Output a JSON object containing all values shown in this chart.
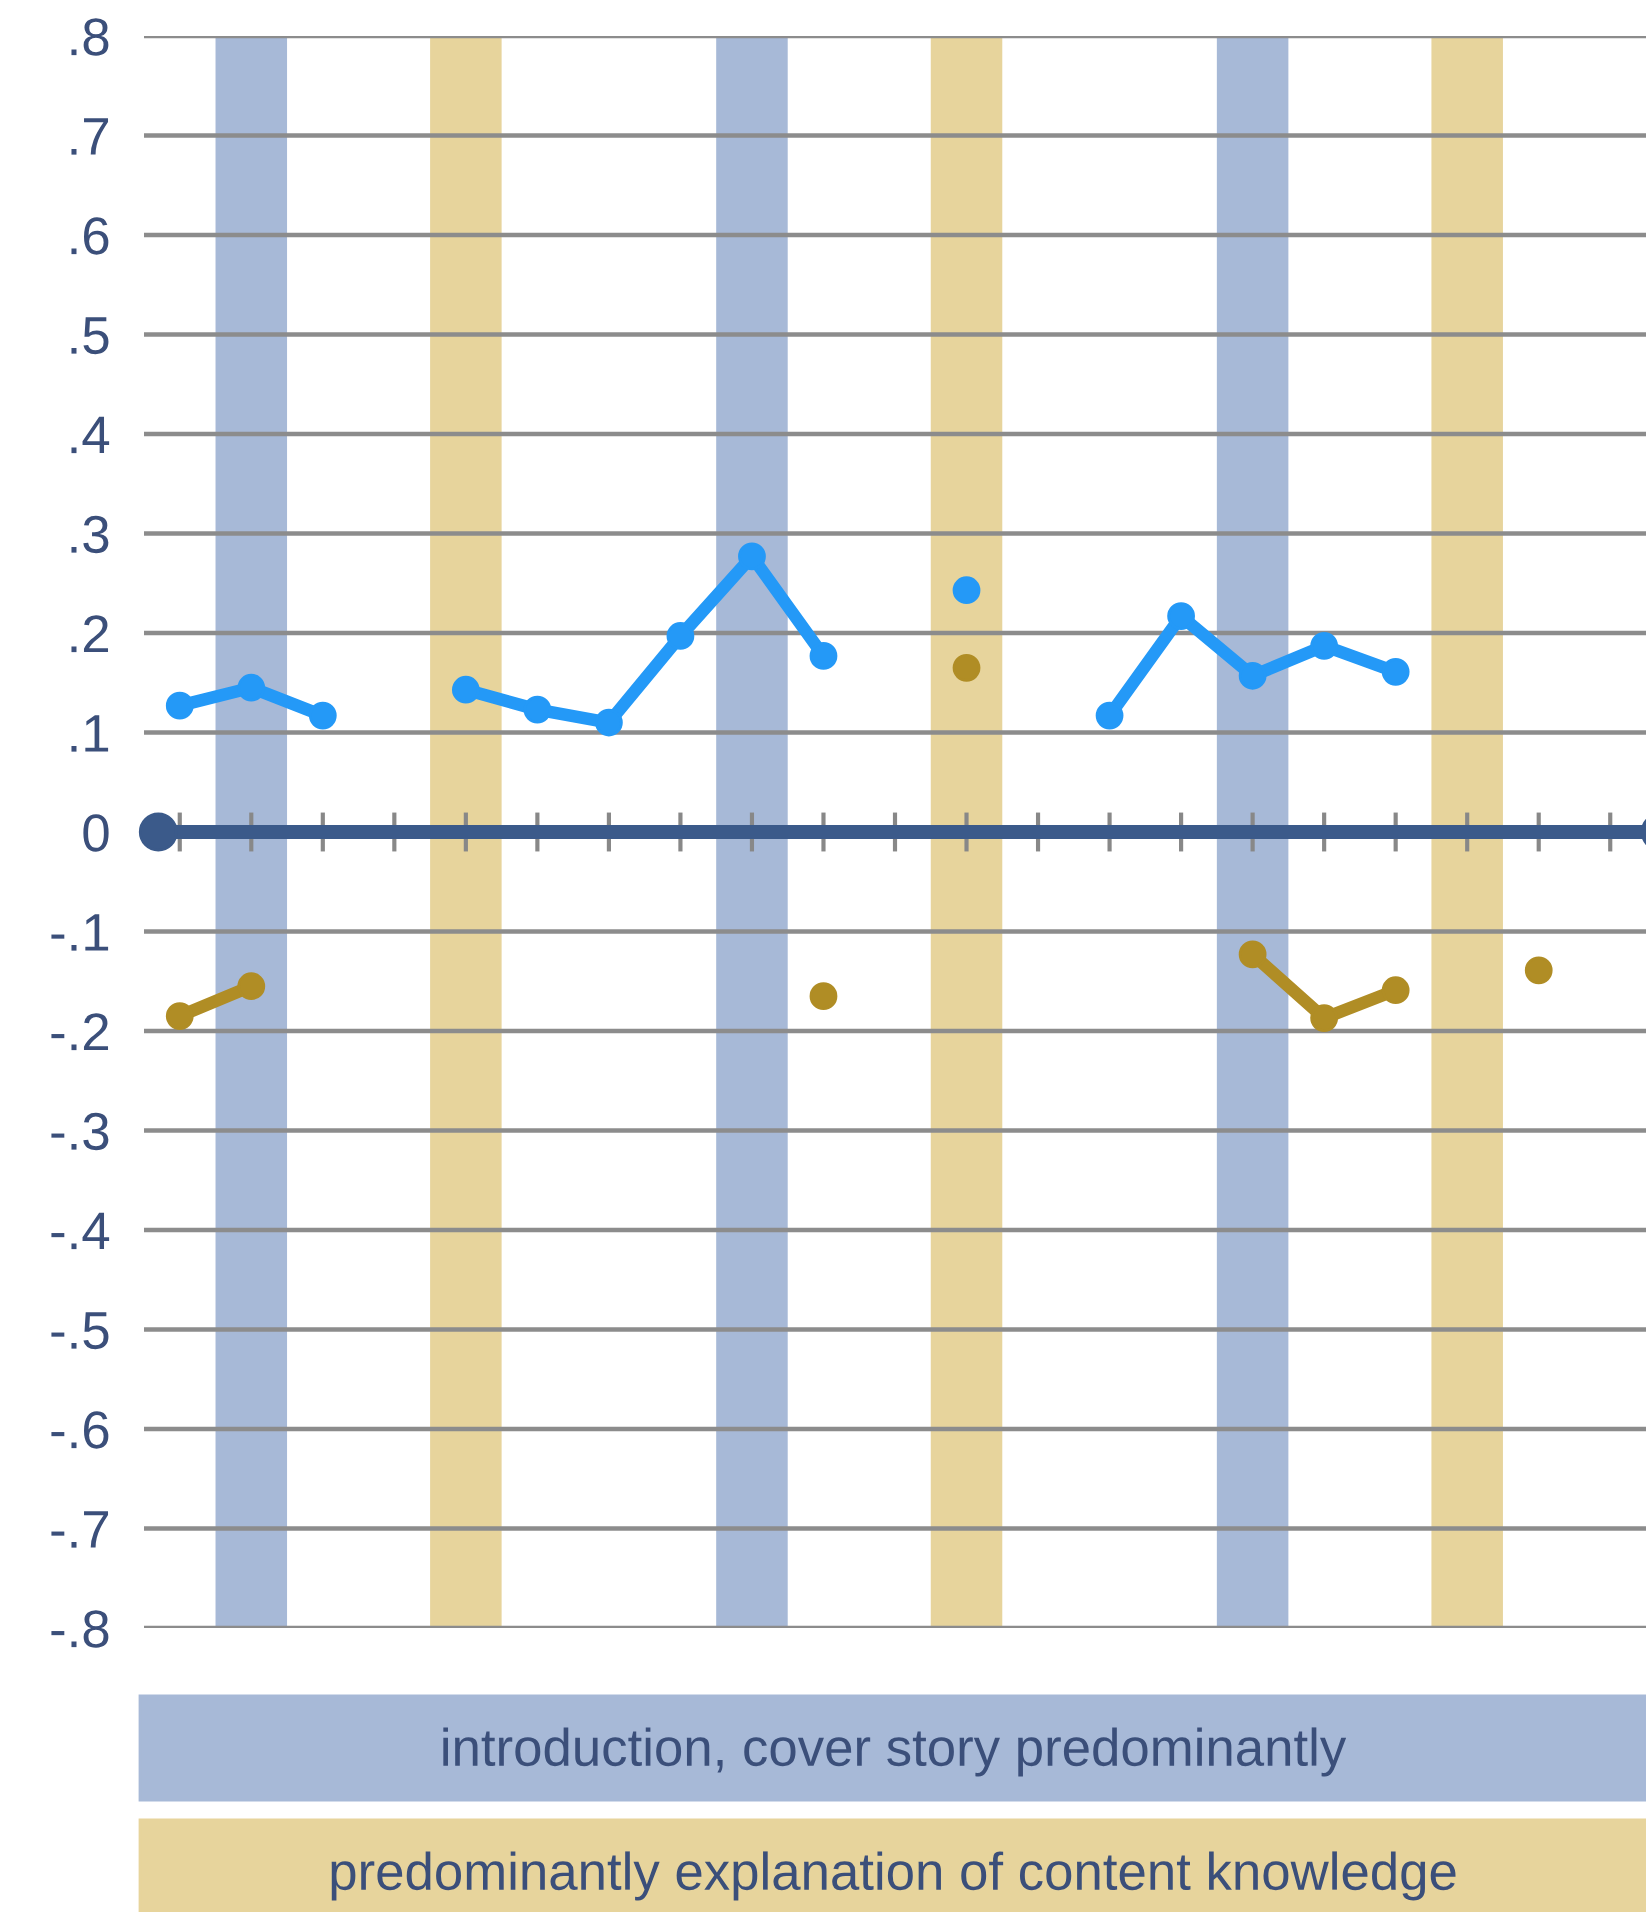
{
  "chart_data": {
    "type": "line",
    "categories": [
      null,
      null,
      null,
      null,
      null,
      null,
      null,
      null,
      null,
      null,
      null,
      null,
      null,
      null,
      null,
      null,
      null,
      null,
      null,
      null,
      null
    ],
    "ylim": [
      -0.8,
      0.8
    ],
    "yticks": [
      {
        "value": 0.8,
        "label": ".8"
      },
      {
        "value": 0.7,
        "label": ".7"
      },
      {
        "value": 0.6,
        "label": ".6"
      },
      {
        "value": 0.5,
        "label": ".5"
      },
      {
        "value": 0.4,
        "label": ".4"
      },
      {
        "value": 0.3,
        "label": ".3"
      },
      {
        "value": 0.2,
        "label": ".2"
      },
      {
        "value": 0.1,
        "label": ".1"
      },
      {
        "value": 0,
        "label": "0"
      },
      {
        "value": -0.1,
        "label": "-.1"
      },
      {
        "value": -0.2,
        "label": "-.2"
      },
      {
        "value": -0.3,
        "label": "-.3"
      },
      {
        "value": -0.4,
        "label": "-.4"
      },
      {
        "value": -0.5,
        "label": "-.5"
      },
      {
        "value": -0.6,
        "label": "-.6"
      },
      {
        "value": -0.7,
        "label": "-.7"
      },
      {
        "value": -0.8,
        "label": "-.8"
      }
    ],
    "grid": "y",
    "marker": "circle",
    "line_style": "solid",
    "legend": "bottom",
    "ref_lines": [
      {
        "axis": "y",
        "value": 0,
        "color": "#3b5a8a"
      }
    ],
    "series": [
      {
        "type": "bar",
        "name": "introduction, cover story predominantly",
        "color": "#a7b9d7",
        "base": [
          null,
          -0.8,
          null,
          null,
          null,
          null,
          null,
          null,
          -0.8,
          null,
          null,
          null,
          null,
          null,
          null,
          -0.8,
          null,
          null,
          null,
          null,
          null
        ],
        "values": [
          null,
          1.6,
          null,
          null,
          null,
          null,
          null,
          null,
          1.6,
          null,
          null,
          null,
          null,
          null,
          null,
          1.6,
          null,
          null,
          null,
          null,
          null
        ]
      },
      {
        "type": "bar",
        "name": "predominantly explanation of content knowledge",
        "color": "#e7d49c",
        "base": [
          null,
          null,
          null,
          null,
          -0.8,
          null,
          null,
          null,
          null,
          null,
          null,
          -0.8,
          null,
          null,
          null,
          null,
          null,
          null,
          -0.8,
          null,
          null
        ],
        "values": [
          null,
          null,
          null,
          null,
          1.6,
          null,
          null,
          null,
          null,
          null,
          null,
          1.6,
          null,
          null,
          null,
          null,
          null,
          null,
          1.6,
          null,
          null
        ]
      },
      {
        "color": "#2499f7",
        "values": [
          0.127,
          0.145,
          0.117,
          null,
          0.143,
          0.123,
          0.11,
          0.197,
          0.277,
          0.177,
          null,
          0.243,
          null,
          0.117,
          0.217,
          0.157,
          0.187,
          0.161,
          null,
          null,
          null
        ]
      },
      {
        "color": "#b08d25",
        "values": [
          -0.185,
          -0.155,
          null,
          null,
          null,
          null,
          null,
          null,
          null,
          -0.165,
          null,
          0.165,
          null,
          null,
          null,
          -0.123,
          -0.187,
          -0.159,
          null,
          -0.139,
          null
        ]
      }
    ]
  }
}
